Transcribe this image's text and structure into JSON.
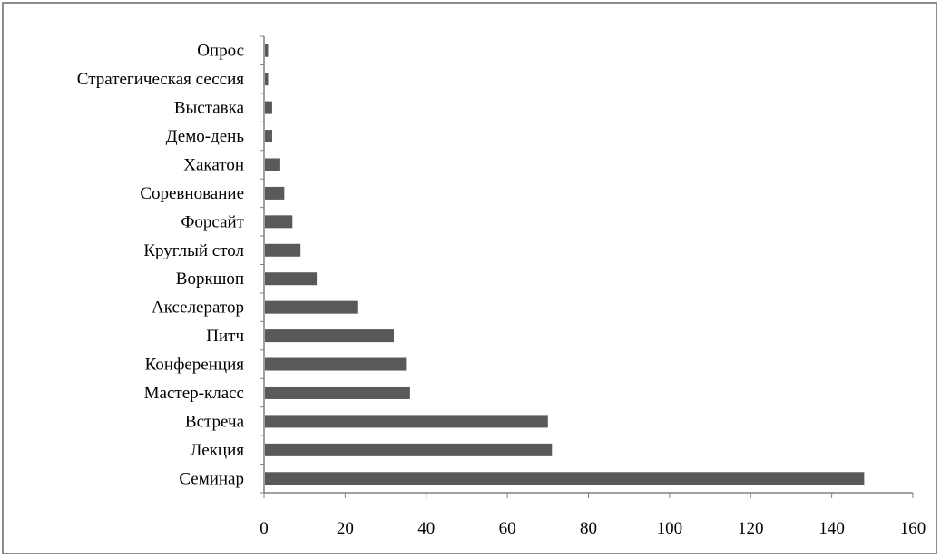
{
  "chart_data": {
    "type": "bar",
    "orientation": "horizontal",
    "categories": [
      "Семинар",
      "Лекция",
      "Встреча",
      "Мастер-класс",
      "Конференция",
      "Питч",
      "Акселератор",
      "Воркшоп",
      "Круглый стол",
      "Форсайт",
      "Соревнование",
      "Хакатон",
      "Демо-день",
      "Выставка",
      "Стратегическая сессия",
      "Опрос"
    ],
    "values": [
      148,
      71,
      70,
      36,
      35,
      32,
      23,
      13,
      9,
      7,
      5,
      4,
      2,
      2,
      1,
      1
    ],
    "xlim": [
      0,
      160
    ],
    "xticks": [
      "0",
      "20",
      "40",
      "60",
      "80",
      "100",
      "120",
      "140",
      "160"
    ],
    "xtick_values": [
      0,
      20,
      40,
      60,
      80,
      100,
      120,
      140,
      160
    ],
    "grid": false,
    "legend": "none",
    "bar_color": "#595959",
    "axis_color": "#808080"
  }
}
